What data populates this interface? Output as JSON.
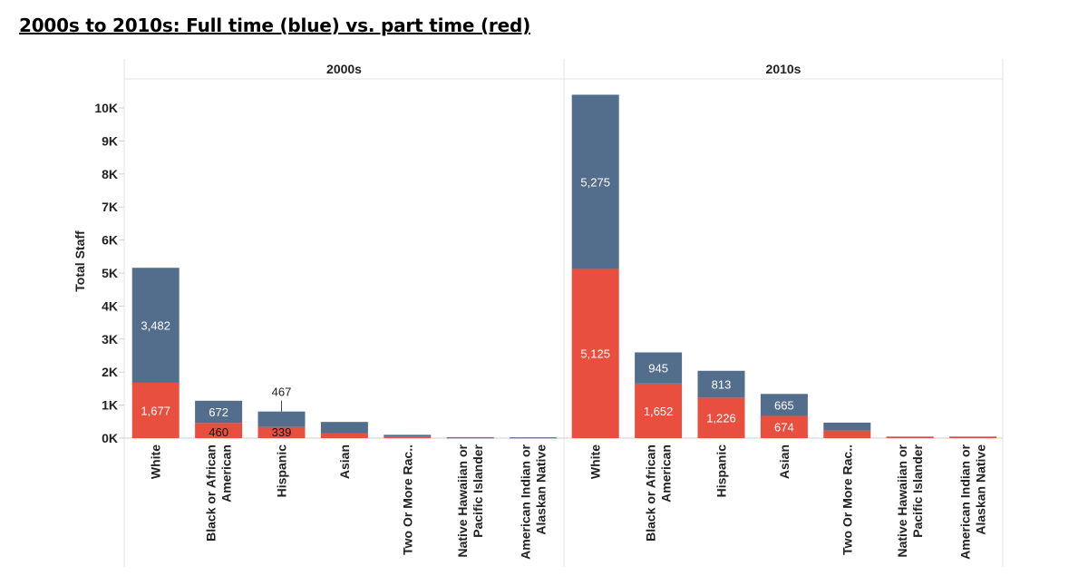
{
  "title": "2000s to 2010s: Full time (blue) vs. part time (red)",
  "colors": {
    "full_time": "#536e8d",
    "part_time": "#e94f3e"
  },
  "chart_data": {
    "type": "bar",
    "stacked": true,
    "ylabel": "Total Staff",
    "ylim": [
      0,
      10500
    ],
    "yticks": [
      {
        "value": 0,
        "label": "0K"
      },
      {
        "value": 1000,
        "label": "1K"
      },
      {
        "value": 2000,
        "label": "2K"
      },
      {
        "value": 3000,
        "label": "3K"
      },
      {
        "value": 4000,
        "label": "4K"
      },
      {
        "value": 5000,
        "label": "5K"
      },
      {
        "value": 6000,
        "label": "6K"
      },
      {
        "value": 7000,
        "label": "7K"
      },
      {
        "value": 8000,
        "label": "8K"
      },
      {
        "value": 9000,
        "label": "9K"
      },
      {
        "value": 10000,
        "label": "10K"
      }
    ],
    "panels": [
      {
        "title": "2000s",
        "categories": [
          [
            "White"
          ],
          [
            "Black or African",
            "American"
          ],
          [
            "Hispanic"
          ],
          [
            "Asian"
          ],
          [
            "Two Or More Rac.."
          ],
          [
            "Native Hawaiian or",
            "Pacific Islander"
          ],
          [
            "American Indian or",
            "Alaskan Native"
          ]
        ],
        "series": [
          {
            "key": "part_time",
            "values": [
              1677,
              460,
              339,
              150,
              50,
              10,
              10
            ],
            "labels": [
              "1,677",
              "460",
              "339",
              null,
              null,
              null,
              null
            ]
          },
          {
            "key": "full_time",
            "values": [
              3482,
              672,
              467,
              340,
              50,
              20,
              15
            ],
            "labels": [
              "3,482",
              "672",
              "467",
              null,
              null,
              null,
              null
            ]
          }
        ]
      },
      {
        "title": "2010s",
        "categories": [
          [
            "White"
          ],
          [
            "Black or African",
            "American"
          ],
          [
            "Hispanic"
          ],
          [
            "Asian"
          ],
          [
            "Two Or More Rac.."
          ],
          [
            "Native Hawaiian or",
            "Pacific Islander"
          ],
          [
            "American Indian or",
            "Alaskan Native"
          ]
        ],
        "series": [
          {
            "key": "part_time",
            "values": [
              5125,
              1652,
              1226,
              674,
              230,
              30,
              30
            ],
            "labels": [
              "5,125",
              "1,652",
              "1,226",
              "674",
              null,
              null,
              null
            ]
          },
          {
            "key": "full_time",
            "values": [
              5275,
              945,
              813,
              665,
              240,
              15,
              15
            ],
            "labels": [
              "5,275",
              "945",
              "813",
              "665",
              null,
              null,
              null
            ]
          }
        ]
      }
    ]
  }
}
